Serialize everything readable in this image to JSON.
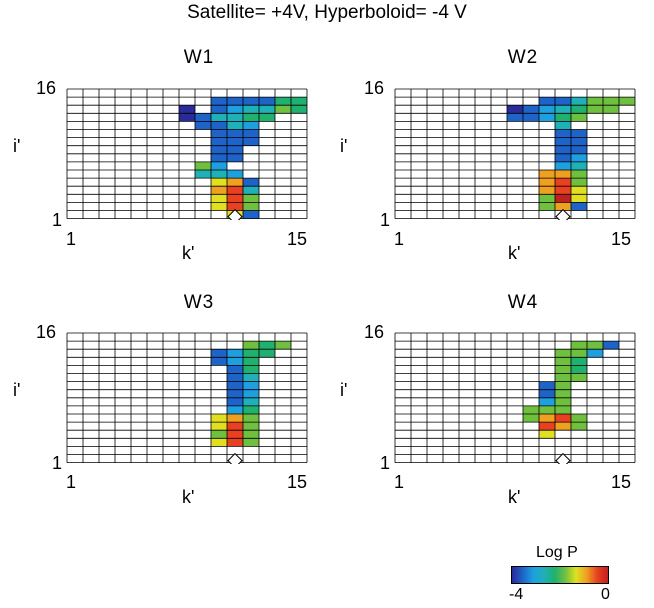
{
  "title": "Satellite= +4V, Hyperboloid= -4 V",
  "chart_data": {
    "type": "heatmap",
    "xlabel": "k'",
    "ylabel": "i'",
    "x_ticks": [
      "1",
      "15"
    ],
    "y_ticks": [
      "1",
      "16"
    ],
    "xlim": [
      1,
      15
    ],
    "ylim": [
      1,
      16
    ],
    "colorbar": {
      "label": "Log P",
      "min": -4,
      "max": 0,
      "min_label": "-4",
      "max_label": "0"
    },
    "colorscale": [
      "#2a2a9a",
      "#1e63c8",
      "#1ea0e0",
      "#20b0b8",
      "#20b070",
      "#70c040",
      "#e0e020",
      "#f0a020",
      "#e84020",
      "#c02020"
    ],
    "marker": "white diamond at k'=11, i'=1",
    "panels": [
      {
        "name": "W1",
        "cells": [
          [
            10,
            15,
            -3.5
          ],
          [
            11,
            15,
            -3.5
          ],
          [
            12,
            15,
            -3.5
          ],
          [
            13,
            15,
            -3.5
          ],
          [
            14,
            15,
            -2.2
          ],
          [
            15,
            15,
            -2.2
          ],
          [
            8,
            14,
            -3.9
          ],
          [
            10,
            14,
            -3.5
          ],
          [
            11,
            14,
            -3.0
          ],
          [
            12,
            14,
            -2.5
          ],
          [
            13,
            14,
            -2.5
          ],
          [
            14,
            14,
            -1.8
          ],
          [
            15,
            14,
            -2.2
          ],
          [
            8,
            13,
            -3.8
          ],
          [
            9,
            13,
            -3.5
          ],
          [
            10,
            13,
            -2.8
          ],
          [
            11,
            13,
            -2.5
          ],
          [
            12,
            13,
            -2.4
          ],
          [
            13,
            13,
            -2.4
          ],
          [
            9,
            12,
            -3.5
          ],
          [
            10,
            12,
            -3.5
          ],
          [
            11,
            12,
            -2.8
          ],
          [
            12,
            12,
            -3.0
          ],
          [
            10,
            11,
            -3.5
          ],
          [
            11,
            11,
            -3.5
          ],
          [
            12,
            11,
            -3.5
          ],
          [
            10,
            10,
            -3.5
          ],
          [
            11,
            10,
            -3.5
          ],
          [
            12,
            10,
            -3.5
          ],
          [
            10,
            9,
            -3.5
          ],
          [
            11,
            9,
            -3.5
          ],
          [
            10,
            8,
            -3.5
          ],
          [
            11,
            8,
            -3.5
          ],
          [
            9,
            7,
            -2.0
          ],
          [
            10,
            7,
            -3.0
          ],
          [
            9,
            6,
            -2.5
          ],
          [
            10,
            6,
            -2.5
          ],
          [
            11,
            6,
            -3.0
          ],
          [
            10,
            5,
            -1.2
          ],
          [
            11,
            5,
            -0.9
          ],
          [
            12,
            5,
            -3.5
          ],
          [
            10,
            4,
            -1.0
          ],
          [
            11,
            4,
            -0.6
          ],
          [
            12,
            4,
            -2.5
          ],
          [
            10,
            3,
            -1.2
          ],
          [
            11,
            3,
            -0.4
          ],
          [
            12,
            3,
            -2.0
          ],
          [
            10,
            2,
            -1.5
          ],
          [
            11,
            2,
            -0.5
          ],
          [
            12,
            2,
            -2.0
          ],
          [
            11,
            1,
            -1.5
          ],
          [
            12,
            1,
            -3.5
          ]
        ]
      },
      {
        "name": "W2",
        "cells": [
          [
            10,
            15,
            -3.5
          ],
          [
            11,
            15,
            -3.5
          ],
          [
            12,
            15,
            -2.8
          ],
          [
            13,
            15,
            -1.8
          ],
          [
            14,
            15,
            -1.6
          ],
          [
            15,
            15,
            -1.6
          ],
          [
            8,
            14,
            -3.9
          ],
          [
            9,
            14,
            -3.5
          ],
          [
            10,
            14,
            -3.2
          ],
          [
            11,
            14,
            -2.6
          ],
          [
            12,
            14,
            -2.4
          ],
          [
            13,
            14,
            -1.8
          ],
          [
            14,
            14,
            -1.7
          ],
          [
            8,
            13,
            -3.5
          ],
          [
            9,
            13,
            -3.5
          ],
          [
            10,
            13,
            -3.0
          ],
          [
            11,
            13,
            -2.2
          ],
          [
            12,
            13,
            -2.0
          ],
          [
            11,
            12,
            -2.6
          ],
          [
            11,
            11,
            -3.5
          ],
          [
            12,
            11,
            -3.5
          ],
          [
            11,
            10,
            -3.5
          ],
          [
            12,
            10,
            -3.5
          ],
          [
            11,
            9,
            -3.5
          ],
          [
            12,
            9,
            -3.5
          ],
          [
            11,
            8,
            -3.5
          ],
          [
            12,
            8,
            -3.0
          ],
          [
            11,
            7,
            -3.2
          ],
          [
            12,
            7,
            -2.6
          ],
          [
            10,
            6,
            -1.1
          ],
          [
            11,
            6,
            -0.8
          ],
          [
            12,
            6,
            -1.8
          ],
          [
            10,
            5,
            -1.0
          ],
          [
            11,
            5,
            -0.6
          ],
          [
            12,
            5,
            -1.6
          ],
          [
            10,
            4,
            -0.9
          ],
          [
            11,
            4,
            -0.3
          ],
          [
            12,
            4,
            -1.2
          ],
          [
            10,
            3,
            -1.6
          ],
          [
            11,
            3,
            -0.2
          ],
          [
            12,
            3,
            -1.5
          ],
          [
            10,
            2,
            -1.6
          ],
          [
            11,
            2,
            -1.0
          ],
          [
            12,
            2,
            -3.5
          ]
        ]
      },
      {
        "name": "W3",
        "cells": [
          [
            12,
            15,
            -2.0
          ],
          [
            13,
            15,
            -2.2
          ],
          [
            14,
            15,
            -2.0
          ],
          [
            10,
            14,
            -3.5
          ],
          [
            11,
            14,
            -3.0
          ],
          [
            12,
            14,
            -2.4
          ],
          [
            13,
            14,
            -2.2
          ],
          [
            10,
            13,
            -3.5
          ],
          [
            11,
            13,
            -3.2
          ],
          [
            12,
            13,
            -2.4
          ],
          [
            11,
            12,
            -3.5
          ],
          [
            12,
            12,
            -2.4
          ],
          [
            11,
            11,
            -3.5
          ],
          [
            12,
            11,
            -2.6
          ],
          [
            11,
            10,
            -3.5
          ],
          [
            12,
            10,
            -3.0
          ],
          [
            11,
            9,
            -3.5
          ],
          [
            12,
            9,
            -3.0
          ],
          [
            11,
            8,
            -3.5
          ],
          [
            12,
            8,
            -2.8
          ],
          [
            11,
            7,
            -3.0
          ],
          [
            12,
            7,
            -2.4
          ],
          [
            10,
            6,
            -1.2
          ],
          [
            11,
            6,
            -0.9
          ],
          [
            12,
            6,
            -2.0
          ],
          [
            10,
            5,
            -1.5
          ],
          [
            11,
            5,
            -0.5
          ],
          [
            12,
            5,
            -1.6
          ],
          [
            10,
            4,
            -1.8
          ],
          [
            11,
            4,
            -0.3
          ],
          [
            12,
            4,
            -1.6
          ],
          [
            10,
            3,
            -1.4
          ],
          [
            11,
            3,
            -0.5
          ],
          [
            12,
            3,
            -1.8
          ]
        ]
      },
      {
        "name": "W4",
        "cells": [
          [
            12,
            15,
            -1.7
          ],
          [
            13,
            15,
            -1.7
          ],
          [
            14,
            15,
            -3.5
          ],
          [
            11,
            14,
            -1.8
          ],
          [
            12,
            14,
            -1.8
          ],
          [
            13,
            14,
            -3.0
          ],
          [
            11,
            13,
            -1.8
          ],
          [
            12,
            13,
            -2.4
          ],
          [
            11,
            12,
            -1.8
          ],
          [
            12,
            12,
            -2.2
          ],
          [
            11,
            11,
            -1.8
          ],
          [
            12,
            11,
            -1.8
          ],
          [
            10,
            10,
            -3.5
          ],
          [
            11,
            10,
            -1.8
          ],
          [
            10,
            9,
            -3.5
          ],
          [
            11,
            9,
            -1.8
          ],
          [
            10,
            8,
            -3.0
          ],
          [
            11,
            8,
            -1.8
          ],
          [
            9,
            7,
            -1.8
          ],
          [
            10,
            7,
            -1.8
          ],
          [
            11,
            7,
            -1.8
          ],
          [
            9,
            6,
            -1.8
          ],
          [
            10,
            6,
            -0.9
          ],
          [
            11,
            6,
            -0.6
          ],
          [
            12,
            6,
            -1.8
          ],
          [
            10,
            5,
            -0.6
          ],
          [
            11,
            5,
            -1.0
          ],
          [
            12,
            5,
            -1.8
          ],
          [
            10,
            4,
            -1.2
          ]
        ]
      }
    ]
  }
}
